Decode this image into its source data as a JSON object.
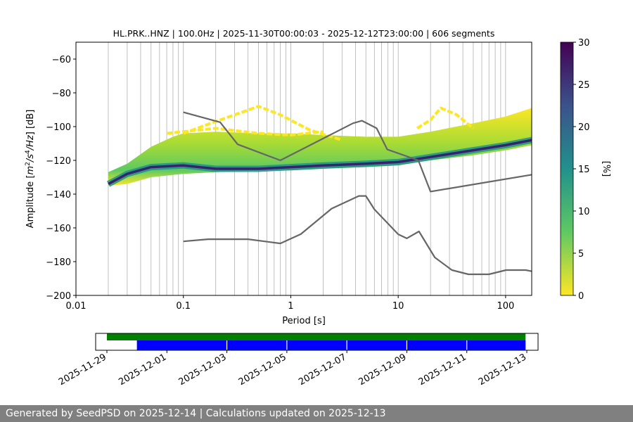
{
  "chart_data": [
    {
      "type": "heatmap",
      "title": "HL.PRK..HNZ | 100.0Hz | 2025-11-30T00:00:03 - 2025-12-12T23:00:00 | 606 segments",
      "xlabel": "Period [s]",
      "ylabel_html": "Amplitude [m²/s⁴/Hz] [dB]",
      "xscale": "log",
      "xlim": [
        0.01,
        175
      ],
      "ylim": [
        -200,
        -50
      ],
      "x_ticks": [
        {
          "value": 0.01,
          "label": "0.01"
        },
        {
          "value": 0.1,
          "label": "0.1"
        },
        {
          "value": 1,
          "label": "1"
        },
        {
          "value": 10,
          "label": "10"
        },
        {
          "value": 100,
          "label": "100"
        }
      ],
      "y_ticks": [
        {
          "value": -60,
          "label": "−60"
        },
        {
          "value": -80,
          "label": "−80"
        },
        {
          "value": -100,
          "label": "−100"
        },
        {
          "value": -120,
          "label": "−120"
        },
        {
          "value": -140,
          "label": "−140"
        },
        {
          "value": -160,
          "label": "−160"
        },
        {
          "value": -180,
          "label": "−180"
        },
        {
          "value": -200,
          "label": "−200"
        }
      ],
      "grid": "vertical",
      "colorbar": {
        "label": "[%]",
        "min": 0,
        "max": 30,
        "ticks": [
          {
            "value": 0,
            "label": "0"
          },
          {
            "value": 5,
            "label": "5"
          },
          {
            "value": 10,
            "label": "10"
          },
          {
            "value": 15,
            "label": "15"
          },
          {
            "value": 20,
            "label": "20"
          },
          {
            "value": 25,
            "label": "25"
          },
          {
            "value": 30,
            "label": "30"
          }
        ],
        "colormap": "viridis_r",
        "stops": [
          "#fde725",
          "#5ec962",
          "#21918c",
          "#3b528b",
          "#440154"
        ]
      },
      "mode_curve": [
        [
          0.02,
          -134
        ],
        [
          0.03,
          -128
        ],
        [
          0.05,
          -124
        ],
        [
          0.1,
          -123
        ],
        [
          0.2,
          -125
        ],
        [
          0.5,
          -125
        ],
        [
          1,
          -124
        ],
        [
          2,
          -123
        ],
        [
          5,
          -122
        ],
        [
          10,
          -121
        ],
        [
          20,
          -118
        ],
        [
          50,
          -114
        ],
        [
          100,
          -111
        ],
        [
          175,
          -108
        ]
      ],
      "band_low": [
        [
          0.02,
          -135
        ],
        [
          0.03,
          -134
        ],
        [
          0.05,
          -130
        ],
        [
          0.1,
          -128
        ],
        [
          0.2,
          -127
        ],
        [
          0.5,
          -126
        ],
        [
          1,
          -126
        ],
        [
          2,
          -125
        ],
        [
          5,
          -124
        ],
        [
          10,
          -123
        ],
        [
          20,
          -120
        ],
        [
          50,
          -117
        ],
        [
          100,
          -114
        ],
        [
          175,
          -111
        ]
      ],
      "band_high": [
        [
          0.02,
          -127
        ],
        [
          0.03,
          -122
        ],
        [
          0.05,
          -112
        ],
        [
          0.08,
          -106
        ],
        [
          0.1,
          -104
        ],
        [
          0.2,
          -103
        ],
        [
          0.5,
          -104
        ],
        [
          1,
          -104
        ],
        [
          2,
          -105
        ],
        [
          5,
          -106
        ],
        [
          10,
          -106
        ],
        [
          20,
          -103
        ],
        [
          50,
          -98
        ],
        [
          100,
          -94
        ],
        [
          175,
          -89
        ]
      ],
      "outlier_arcs": [
        [
          [
            0.1,
            -104
          ],
          [
            0.2,
            -97
          ],
          [
            0.5,
            -88
          ],
          [
            0.8,
            -93
          ],
          [
            1.5,
            -102
          ],
          [
            3,
            -108
          ]
        ],
        [
          [
            0.07,
            -104
          ],
          [
            0.2,
            -101
          ],
          [
            0.5,
            -104
          ],
          [
            1,
            -105
          ],
          [
            2,
            -103
          ]
        ],
        [
          [
            15,
            -101
          ],
          [
            20,
            -96
          ],
          [
            25,
            -89
          ],
          [
            35,
            -93
          ],
          [
            50,
            -101
          ]
        ]
      ],
      "nhnm": [
        [
          0.1,
          -91.5
        ],
        [
          0.22,
          -97.4
        ],
        [
          0.32,
          -110.5
        ],
        [
          0.8,
          -120
        ],
        [
          3.8,
          -98
        ],
        [
          4.6,
          -96.5
        ],
        [
          6.3,
          -101
        ],
        [
          7.9,
          -113.5
        ],
        [
          15.4,
          -120
        ],
        [
          20,
          -138.5
        ],
        [
          175,
          -128.5
        ]
      ],
      "nlnm": [
        [
          0.1,
          -168
        ],
        [
          0.17,
          -166.7
        ],
        [
          0.4,
          -166.7
        ],
        [
          0.8,
          -169.2
        ],
        [
          1.24,
          -163.7
        ],
        [
          2.4,
          -148.6
        ],
        [
          4.3,
          -141.1
        ],
        [
          5,
          -141.1
        ],
        [
          6,
          -149
        ],
        [
          10,
          -163.8
        ],
        [
          12,
          -166.2
        ],
        [
          15.6,
          -162.1
        ],
        [
          21.9,
          -177.5
        ],
        [
          31.6,
          -185
        ],
        [
          45,
          -187.5
        ],
        [
          70,
          -187.5
        ],
        [
          101,
          -185
        ],
        [
          154,
          -185
        ],
        [
          175,
          -185.7
        ]
      ]
    },
    {
      "type": "timeline",
      "xlim": [
        "2025-11-28T15:00:00",
        "2025-12-13T09:00:00"
      ],
      "x_ticks": [
        "2025-11-29",
        "2025-12-01",
        "2025-12-03",
        "2025-12-05",
        "2025-12-07",
        "2025-12-09",
        "2025-12-11",
        "2025-12-13"
      ],
      "rows": [
        {
          "color": "#008000",
          "start": "2025-11-29T00:00:00",
          "end": "2025-12-12T23:00:00"
        },
        {
          "color": "#0000ff",
          "start": "2025-11-30T00:00:03",
          "end": "2025-12-12T23:00:00"
        }
      ],
      "separators": [
        "2025-12-03",
        "2025-12-05",
        "2025-12-07",
        "2025-12-09",
        "2025-12-11"
      ]
    }
  ],
  "footer": {
    "text": "Generated by SeedPSD on 2025-12-14 | Calculations updated on 2025-12-13"
  }
}
